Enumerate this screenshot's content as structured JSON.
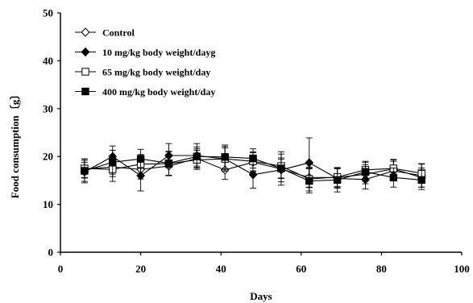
{
  "chart_data": {
    "type": "line",
    "xlabel": "Days",
    "ylabel": "Food consumption〔g〕",
    "xlim": [
      0,
      100
    ],
    "ylim": [
      0,
      50
    ],
    "xticks": [
      "0",
      "20",
      "40",
      "60",
      "80",
      "100"
    ],
    "yticks": [
      "0",
      "10",
      "20",
      "30",
      "40",
      "50"
    ],
    "grid": false,
    "legend_position": "top-left",
    "x": [
      6,
      13,
      20,
      27,
      34,
      41,
      48,
      55,
      62,
      69,
      76,
      83,
      90
    ],
    "series": [
      {
        "name": "Control",
        "marker": "open-diamond",
        "values": [
          17.4,
          17.8,
          17.3,
          18.0,
          19.6,
          17.2,
          18.8,
          17.4,
          15.6,
          15.6,
          16.3,
          17.4,
          15.6
        ],
        "error": [
          1.8,
          2.0,
          2.0,
          2.0,
          2.0,
          2.0,
          2.0,
          2.0,
          2.0,
          2.0,
          2.0,
          2.0,
          2.0
        ]
      },
      {
        "name": "10 mg/kg body weight/dayg",
        "marker": "filled-diamond",
        "values": [
          16.8,
          20.0,
          16.0,
          20.2,
          20.2,
          19.5,
          16.2,
          17.2,
          18.7,
          15.4,
          15.2,
          17.0,
          16.0
        ],
        "error": [
          2.0,
          2.2,
          3.2,
          2.5,
          2.5,
          2.6,
          2.8,
          2.5,
          5.2,
          2.0,
          2.0,
          2.0,
          2.4
        ]
      },
      {
        "name": "65 mg/kg body weight/day",
        "marker": "open-square",
        "values": [
          17.5,
          17.3,
          18.4,
          18.5,
          19.3,
          19.5,
          19.0,
          18.0,
          15.3,
          15.7,
          17.2,
          17.5,
          16.5
        ],
        "error": [
          2.0,
          2.5,
          2.0,
          2.5,
          2.0,
          2.3,
          2.0,
          2.5,
          2.5,
          2.0,
          1.8,
          1.8,
          2.0
        ]
      },
      {
        "name": "400 mg/kg body weight/day",
        "marker": "filled-square",
        "values": [
          17.0,
          18.8,
          19.5,
          18.6,
          20.0,
          19.9,
          19.6,
          17.5,
          14.9,
          15.1,
          16.8,
          15.6,
          15.1
        ],
        "error": [
          2.5,
          2.5,
          2.0,
          2.5,
          2.0,
          2.5,
          2.0,
          3.5,
          2.5,
          2.5,
          2.0,
          2.0,
          2.0
        ]
      }
    ]
  }
}
